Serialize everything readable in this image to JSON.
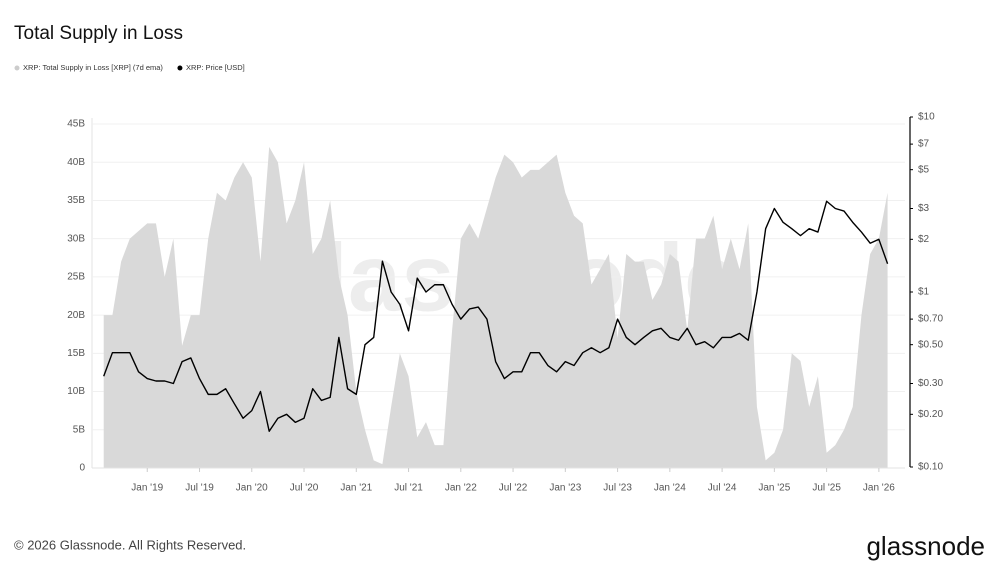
{
  "chart_data": {
    "type": "area-line",
    "title": "Total Supply in Loss",
    "watermark": "glassnode",
    "copyright": "© 2026 Glassnode. All Rights Reserved.",
    "logo": "glassnode",
    "x": [
      "2018-08",
      "2018-09",
      "2018-10",
      "2018-11",
      "2018-12",
      "2019-01",
      "2019-02",
      "2019-03",
      "2019-04",
      "2019-05",
      "2019-06",
      "2019-07",
      "2019-08",
      "2019-09",
      "2019-10",
      "2019-11",
      "2019-12",
      "2020-01",
      "2020-02",
      "2020-03",
      "2020-04",
      "2020-05",
      "2020-06",
      "2020-07",
      "2020-08",
      "2020-09",
      "2020-10",
      "2020-11",
      "2020-12",
      "2021-01",
      "2021-02",
      "2021-03",
      "2021-04",
      "2021-05",
      "2021-06",
      "2021-07",
      "2021-08",
      "2021-09",
      "2021-10",
      "2021-11",
      "2021-12",
      "2022-01",
      "2022-02",
      "2022-03",
      "2022-04",
      "2022-05",
      "2022-06",
      "2022-07",
      "2022-08",
      "2022-09",
      "2022-10",
      "2022-11",
      "2022-12",
      "2023-01",
      "2023-02",
      "2023-03",
      "2023-04",
      "2023-05",
      "2023-06",
      "2023-07",
      "2023-08",
      "2023-09",
      "2023-10",
      "2023-11",
      "2023-12",
      "2024-01",
      "2024-02",
      "2024-03",
      "2024-04",
      "2024-05",
      "2024-06",
      "2024-07",
      "2024-08",
      "2024-09",
      "2024-10",
      "2024-11",
      "2024-12",
      "2025-01",
      "2025-02",
      "2025-03",
      "2025-04",
      "2025-05",
      "2025-06",
      "2025-07",
      "2025-08",
      "2025-09",
      "2025-10",
      "2025-11",
      "2025-12",
      "2026-01",
      "2026-02"
    ],
    "xlim": [
      "2018-07",
      "2026-04"
    ],
    "xticks": [
      {
        "value": "2019-01",
        "label": "Jan '19"
      },
      {
        "value": "2019-07",
        "label": "Jul '19"
      },
      {
        "value": "2020-01",
        "label": "Jan '20"
      },
      {
        "value": "2020-07",
        "label": "Jul '20"
      },
      {
        "value": "2021-01",
        "label": "Jan '21"
      },
      {
        "value": "2021-07",
        "label": "Jul '21"
      },
      {
        "value": "2022-01",
        "label": "Jan '22"
      },
      {
        "value": "2022-07",
        "label": "Jul '22"
      },
      {
        "value": "2023-01",
        "label": "Jan '23"
      },
      {
        "value": "2023-07",
        "label": "Jul '23"
      },
      {
        "value": "2024-01",
        "label": "Jan '24"
      },
      {
        "value": "2024-07",
        "label": "Jul '24"
      },
      {
        "value": "2025-01",
        "label": "Jan '25"
      },
      {
        "value": "2025-07",
        "label": "Jul '25"
      },
      {
        "value": "2026-01",
        "label": "Jan '26"
      }
    ],
    "ylim": [
      0,
      45000000000.0
    ],
    "yticks": [
      0,
      {
        "value": 5000000000.0,
        "label": "5B"
      },
      {
        "value": 10000000000.0,
        "label": "10B"
      },
      {
        "value": 15000000000.0,
        "label": "15B"
      },
      {
        "value": 20000000000.0,
        "label": "20B"
      },
      {
        "value": 25000000000.0,
        "label": "25B"
      },
      {
        "value": 30000000000.0,
        "label": "30B"
      },
      {
        "value": 35000000000.0,
        "label": "35B"
      },
      {
        "value": 40000000000.0,
        "label": "40B"
      },
      {
        "value": 45000000000.0,
        "label": "45B"
      }
    ],
    "y2lim": [
      0.1,
      10
    ],
    "y2log": true,
    "y2ticks": [
      {
        "value": 0.1,
        "label": "$0.10"
      },
      {
        "value": 0.2,
        "label": "$0.20"
      },
      {
        "value": 0.3,
        "label": "$0.30"
      },
      {
        "value": 0.5,
        "label": "$0.50"
      },
      {
        "value": 0.7,
        "label": "$0.70"
      },
      {
        "value": 1,
        "label": "$1"
      },
      {
        "value": 2,
        "label": "$2"
      },
      {
        "value": 3,
        "label": "$3"
      },
      {
        "value": 5,
        "label": "$5"
      },
      {
        "value": 7,
        "label": "$7"
      },
      {
        "value": 10,
        "label": "$10"
      }
    ],
    "grid": true,
    "series": [
      {
        "name": "XRP: Total Supply in Loss [XRP] (7d ema)",
        "color": "#d9d9d9",
        "kind": "area",
        "values": [
          20000000000.0,
          20000000000.0,
          27000000000.0,
          30000000000.0,
          31000000000.0,
          32000000000.0,
          32000000000.0,
          25000000000.0,
          30000000000.0,
          16000000000.0,
          20000000000.0,
          20000000000.0,
          30000000000.0,
          36000000000.0,
          35000000000.0,
          38000000000.0,
          40000000000.0,
          38000000000.0,
          27000000000.0,
          42000000000.0,
          40000000000.0,
          32000000000.0,
          35000000000.0,
          40000000000.0,
          28000000000.0,
          30000000000.0,
          35000000000.0,
          25000000000.0,
          20000000000.0,
          10000000000.0,
          5000000000.0,
          1000000000.0,
          500000000.0,
          8000000000.0,
          15000000000.0,
          12000000000.0,
          4000000000.0,
          6000000000.0,
          3000000000.0,
          3000000000.0,
          18000000000.0,
          30000000000.0,
          32000000000.0,
          30000000000.0,
          34000000000.0,
          38000000000.0,
          41000000000.0,
          40000000000.0,
          38000000000.0,
          39000000000.0,
          39000000000.0,
          40000000000.0,
          41000000000.0,
          36000000000.0,
          33000000000.0,
          32000000000.0,
          24000000000.0,
          26000000000.0,
          28000000000.0,
          17000000000.0,
          28000000000.0,
          27000000000.0,
          27000000000.0,
          22000000000.0,
          24000000000.0,
          28000000000.0,
          27000000000.0,
          18000000000.0,
          30000000000.0,
          30000000000.0,
          33000000000.0,
          26000000000.0,
          30000000000.0,
          26000000000.0,
          32000000000.0,
          8000000000.0,
          1000000000.0,
          2000000000.0,
          5000000000.0,
          15000000000.0,
          14000000000.0,
          8000000000.0,
          12000000000.0,
          2000000000.0,
          3000000000.0,
          5000000000.0,
          8000000000.0,
          20000000000.0,
          28000000000.0,
          30000000000.0,
          36000000000.0
        ]
      },
      {
        "name": "XRP: Price [USD]",
        "color": "#000000",
        "kind": "line",
        "axis": "y2",
        "values": [
          0.33,
          0.45,
          0.45,
          0.45,
          0.35,
          0.32,
          0.31,
          0.31,
          0.3,
          0.4,
          0.42,
          0.32,
          0.26,
          0.26,
          0.28,
          0.23,
          0.19,
          0.21,
          0.27,
          0.16,
          0.19,
          0.2,
          0.18,
          0.19,
          0.28,
          0.24,
          0.25,
          0.55,
          0.28,
          0.26,
          0.5,
          0.55,
          1.5,
          1.0,
          0.85,
          0.6,
          1.2,
          1.0,
          1.1,
          1.1,
          0.85,
          0.7,
          0.8,
          0.82,
          0.7,
          0.4,
          0.32,
          0.35,
          0.35,
          0.45,
          0.45,
          0.38,
          0.35,
          0.4,
          0.38,
          0.45,
          0.48,
          0.45,
          0.48,
          0.7,
          0.55,
          0.5,
          0.55,
          0.6,
          0.62,
          0.55,
          0.53,
          0.62,
          0.5,
          0.52,
          0.48,
          0.55,
          0.55,
          0.58,
          0.53,
          1.0,
          2.3,
          3.0,
          2.5,
          2.3,
          2.1,
          2.3,
          2.2,
          3.3,
          3.0,
          2.9,
          2.5,
          2.2,
          1.9,
          2.0,
          1.45
        ]
      }
    ]
  }
}
